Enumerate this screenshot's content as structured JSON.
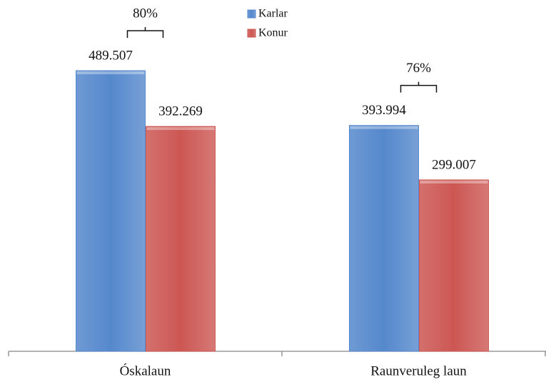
{
  "chart_data": {
    "type": "bar",
    "categories": [
      "Óskalaun",
      "Raunveruleg laun"
    ],
    "series": [
      {
        "name": "Karlar",
        "color": "#5588cc",
        "values": [
          489507,
          393994
        ],
        "value_labels": [
          "489.507",
          "393.994"
        ]
      },
      {
        "name": "Konur",
        "color": "#cc5753",
        "values": [
          392269,
          299007
        ],
        "value_labels": [
          "392.269",
          "299.007"
        ]
      }
    ],
    "annotations": [
      "80%",
      "76%"
    ]
  }
}
